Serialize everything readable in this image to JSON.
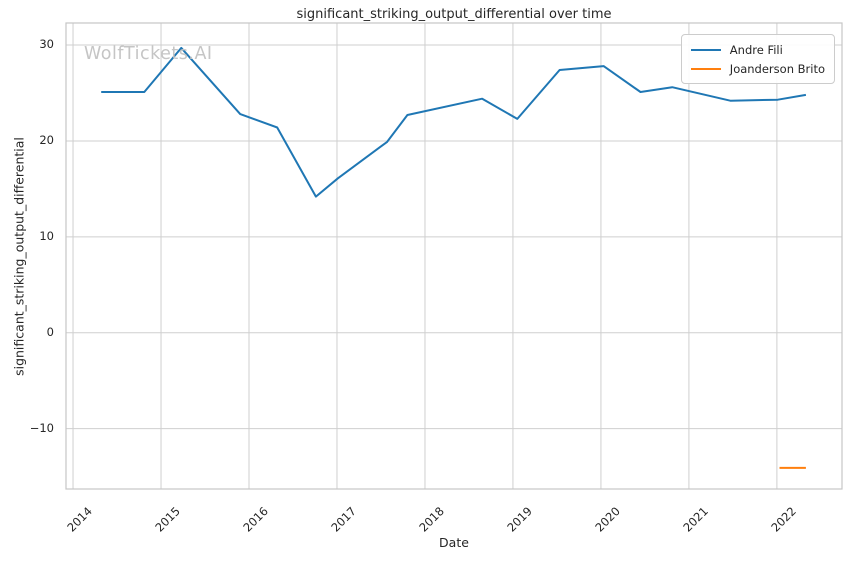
{
  "watermark": "WolfTickets.AI",
  "colors": {
    "background": "#ffffff",
    "grid": "#cfcfcf",
    "spine": "#c6c6c6",
    "text": "#262626",
    "watermark": "#c5c5c5",
    "series_blue": "#1f77b4",
    "series_orange": "#ff7f0e"
  },
  "chart_data": {
    "type": "line",
    "title": "significant_striking_output_differential over time",
    "xlabel": "Date",
    "ylabel": "significant_striking_output_differential",
    "xlim": [
      2013.92,
      2022.74
    ],
    "ylim": [
      -16.3,
      32.3
    ],
    "x_ticks": [
      2014,
      2015,
      2016,
      2017,
      2018,
      2019,
      2020,
      2021,
      2022
    ],
    "y_ticks": [
      30,
      20,
      10,
      0,
      -10
    ],
    "grid": true,
    "legend_position": "upper right",
    "series": [
      {
        "name": "Andre Fili",
        "color": "#1f77b4",
        "points": [
          [
            2014.32,
            25.1
          ],
          [
            2014.81,
            25.1
          ],
          [
            2015.23,
            29.7
          ],
          [
            2015.9,
            22.8
          ],
          [
            2016.32,
            21.4
          ],
          [
            2016.76,
            14.2
          ],
          [
            2017.01,
            16.1
          ],
          [
            2017.57,
            19.9
          ],
          [
            2017.8,
            22.7
          ],
          [
            2018.65,
            24.4
          ],
          [
            2019.05,
            22.3
          ],
          [
            2019.53,
            27.4
          ],
          [
            2020.03,
            27.8
          ],
          [
            2020.45,
            25.1
          ],
          [
            2020.81,
            25.6
          ],
          [
            2021.47,
            24.2
          ],
          [
            2022.01,
            24.3
          ],
          [
            2022.33,
            24.8
          ]
        ]
      },
      {
        "name": "Joanderson Brito",
        "color": "#ff7f0e",
        "points": [
          [
            2022.03,
            -14.1
          ],
          [
            2022.33,
            -14.1
          ]
        ]
      }
    ]
  }
}
